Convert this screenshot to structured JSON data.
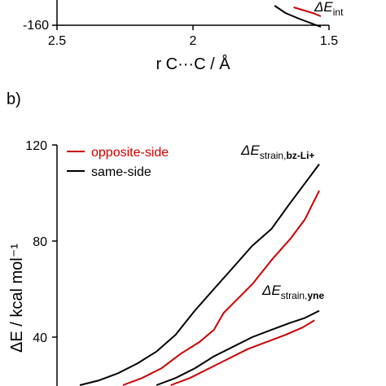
{
  "chart_data": [
    {
      "panel": "",
      "type": "line",
      "x_tick_labels": [
        "2.5",
        "2",
        "1.5"
      ],
      "y_tick_labels": [
        "-160"
      ],
      "xlim": [
        2.5,
        1.5
      ],
      "ylim_visible_min": -160,
      "x_reversed": true,
      "xlabel": "r C···C / Å",
      "ylabel": "",
      "annotation": {
        "main": "ΔE",
        "sub": "int"
      },
      "series": [
        {
          "color": "#cc0000",
          "x": [
            1.63,
            1.6,
            1.56,
            1.53
          ],
          "y": [
            -138,
            -141,
            -145,
            -149
          ]
        },
        {
          "color": "#000000",
          "x": [
            1.7,
            1.66,
            1.61,
            1.57,
            1.53
          ],
          "y": [
            -136,
            -145,
            -152,
            -157,
            -162
          ]
        }
      ]
    },
    {
      "panel": "b)",
      "type": "line",
      "xlabel": "",
      "ylabel": "ΔE / kcal mol⁻¹",
      "ylim": [
        20,
        120
      ],
      "y_ticks": [
        40,
        80,
        120
      ],
      "y_tick_labels": [
        "40",
        "80",
        "120"
      ],
      "legend": {
        "placement": "top-left",
        "entries": [
          {
            "label": "opposite-side",
            "color": "#cc0000",
            "text_color": "#cc0000"
          },
          {
            "label": "same-side",
            "color": "#000000",
            "text_color": "#000000"
          }
        ]
      },
      "annotations": [
        {
          "main": "ΔE",
          "sub": "strain,",
          "sub_bold": "bz-Li+"
        },
        {
          "main": "ΔE",
          "sub": "strain,",
          "sub_bold": "yne"
        }
      ],
      "series": [
        {
          "group": "bz-Li+",
          "color": "#000000",
          "x": [
            0.0,
            0.08,
            0.16,
            0.24,
            0.32,
            0.4,
            0.48,
            0.56,
            0.64,
            0.72,
            0.8,
            0.88,
            0.94,
            1.0
          ],
          "y": [
            20,
            22,
            25,
            29,
            34,
            41,
            51,
            60,
            69,
            78,
            85,
            96,
            104,
            112
          ]
        },
        {
          "group": "bz-Li+",
          "color": "#cc0000",
          "x": [
            0.18,
            0.26,
            0.34,
            0.42,
            0.5,
            0.56,
            0.6,
            0.66,
            0.72,
            0.8,
            0.88,
            0.94,
            1.0
          ],
          "y": [
            20,
            23,
            27,
            33,
            38,
            43,
            50,
            56,
            62,
            72,
            81,
            89,
            101
          ]
        },
        {
          "group": "yne",
          "color": "#000000",
          "x": [
            0.32,
            0.4,
            0.48,
            0.56,
            0.64,
            0.72,
            0.8,
            0.88,
            0.94,
            1.0
          ],
          "y": [
            20,
            23,
            27,
            32,
            36,
            40,
            43,
            46,
            48,
            51
          ]
        },
        {
          "group": "yne",
          "color": "#cc0000",
          "x": [
            0.38,
            0.46,
            0.54,
            0.62,
            0.7,
            0.78,
            0.86,
            0.93,
            0.98
          ],
          "y": [
            20,
            23,
            27,
            31,
            35,
            38,
            41,
            44,
            47
          ]
        }
      ]
    }
  ]
}
